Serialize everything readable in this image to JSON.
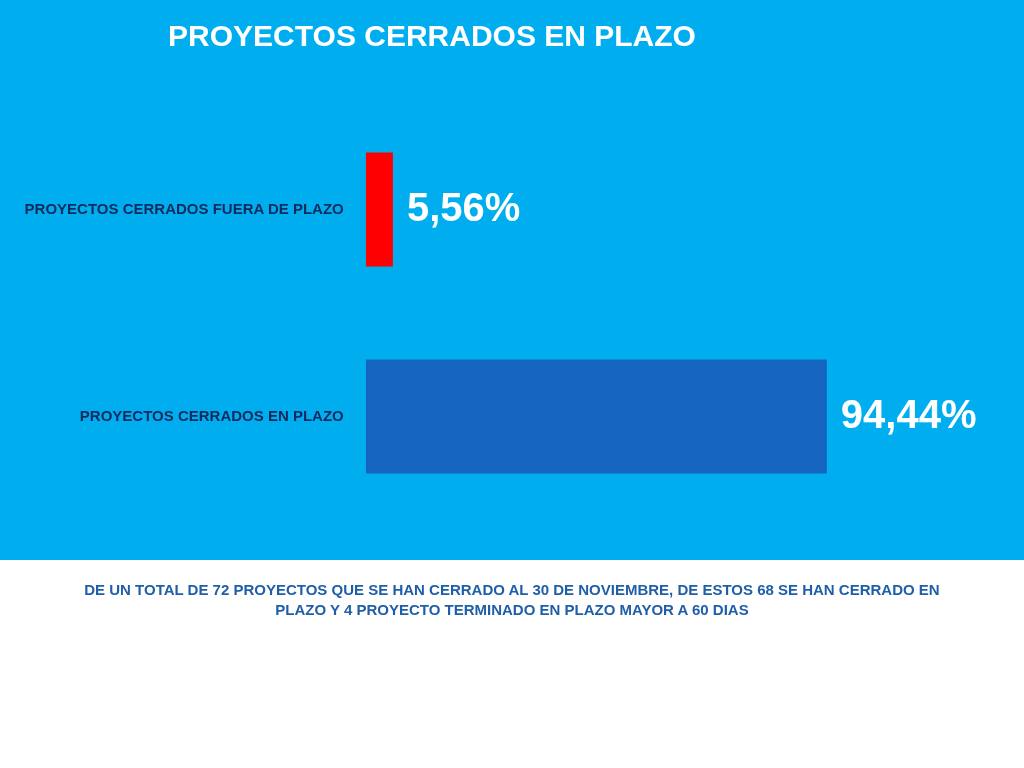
{
  "chart_data": {
    "type": "bar",
    "orientation": "horizontal",
    "title": "PROYECTOS CERRADOS EN PLAZO",
    "categories": [
      "PROYECTOS CERRADOS FUERA DE PLAZO",
      "PROYECTOS CERRADOS EN PLAZO"
    ],
    "values": [
      5.56,
      94.44
    ],
    "colors": [
      "#ff0000",
      "#1565c0"
    ],
    "value_labels": [
      "5,56%",
      "94,44%"
    ],
    "grid": false,
    "legend": false,
    "annotations": [
      "DE UN TOTAL DE 72 PROYECTOS QUE SE HAN CERRADO AL 30 DE NOVIEMBRE, DE ESTOS 68 SE HAN CERRADO EN PLAZO Y 4 PROYECTO TERMINADO EN PLAZO MAYOR A 60 DIAS"
    ]
  }
}
